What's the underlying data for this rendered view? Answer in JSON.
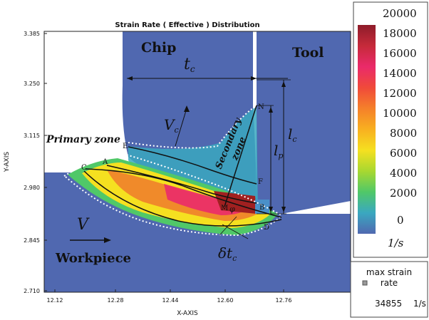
{
  "title": "Strain Rate ( Effective ) Distribution",
  "xaxis": {
    "label": "X-AXIS",
    "ticks": [
      "12.12",
      "12.28",
      "12.44",
      "12.60",
      "12.76"
    ]
  },
  "yaxis": {
    "label": "Y-AXIS",
    "ticks": [
      "3.385",
      "3.250",
      "3.115",
      "2.980",
      "2.845",
      "2.710"
    ]
  },
  "labels": {
    "chip": "Chip",
    "tool": "Tool",
    "workpiece": "Workpiece",
    "primary_zone": "Primary zone",
    "secondary_zone_1": "Secondary",
    "secondary_zone_2": "zone",
    "tc": "t",
    "tc_sub": "c",
    "vc": "V",
    "vc_sub": "c",
    "v": "V",
    "lc": "l",
    "lc_sub": "c",
    "lp": "l",
    "lp_sub": "p",
    "dtc": "δt",
    "dtc_sub": "c",
    "phi": "φ"
  },
  "points": {
    "A": "A",
    "B": "B",
    "C": "C",
    "D": "D",
    "E": "E",
    "F": "F",
    "M": "M",
    "N": "N"
  },
  "colorbar": {
    "values": [
      "20000",
      "18000",
      "16000",
      "14000",
      "12000",
      "10000",
      "8000",
      "6000",
      "4000",
      "2000",
      "0"
    ],
    "unit": "1/s"
  },
  "max_box": {
    "title_1": "max strain",
    "title_2": "rate",
    "value": "34855",
    "unit": "1/s"
  },
  "colors": {
    "background": "#5068b0",
    "hot": "#a02020",
    "warm": "#f0e030"
  }
}
